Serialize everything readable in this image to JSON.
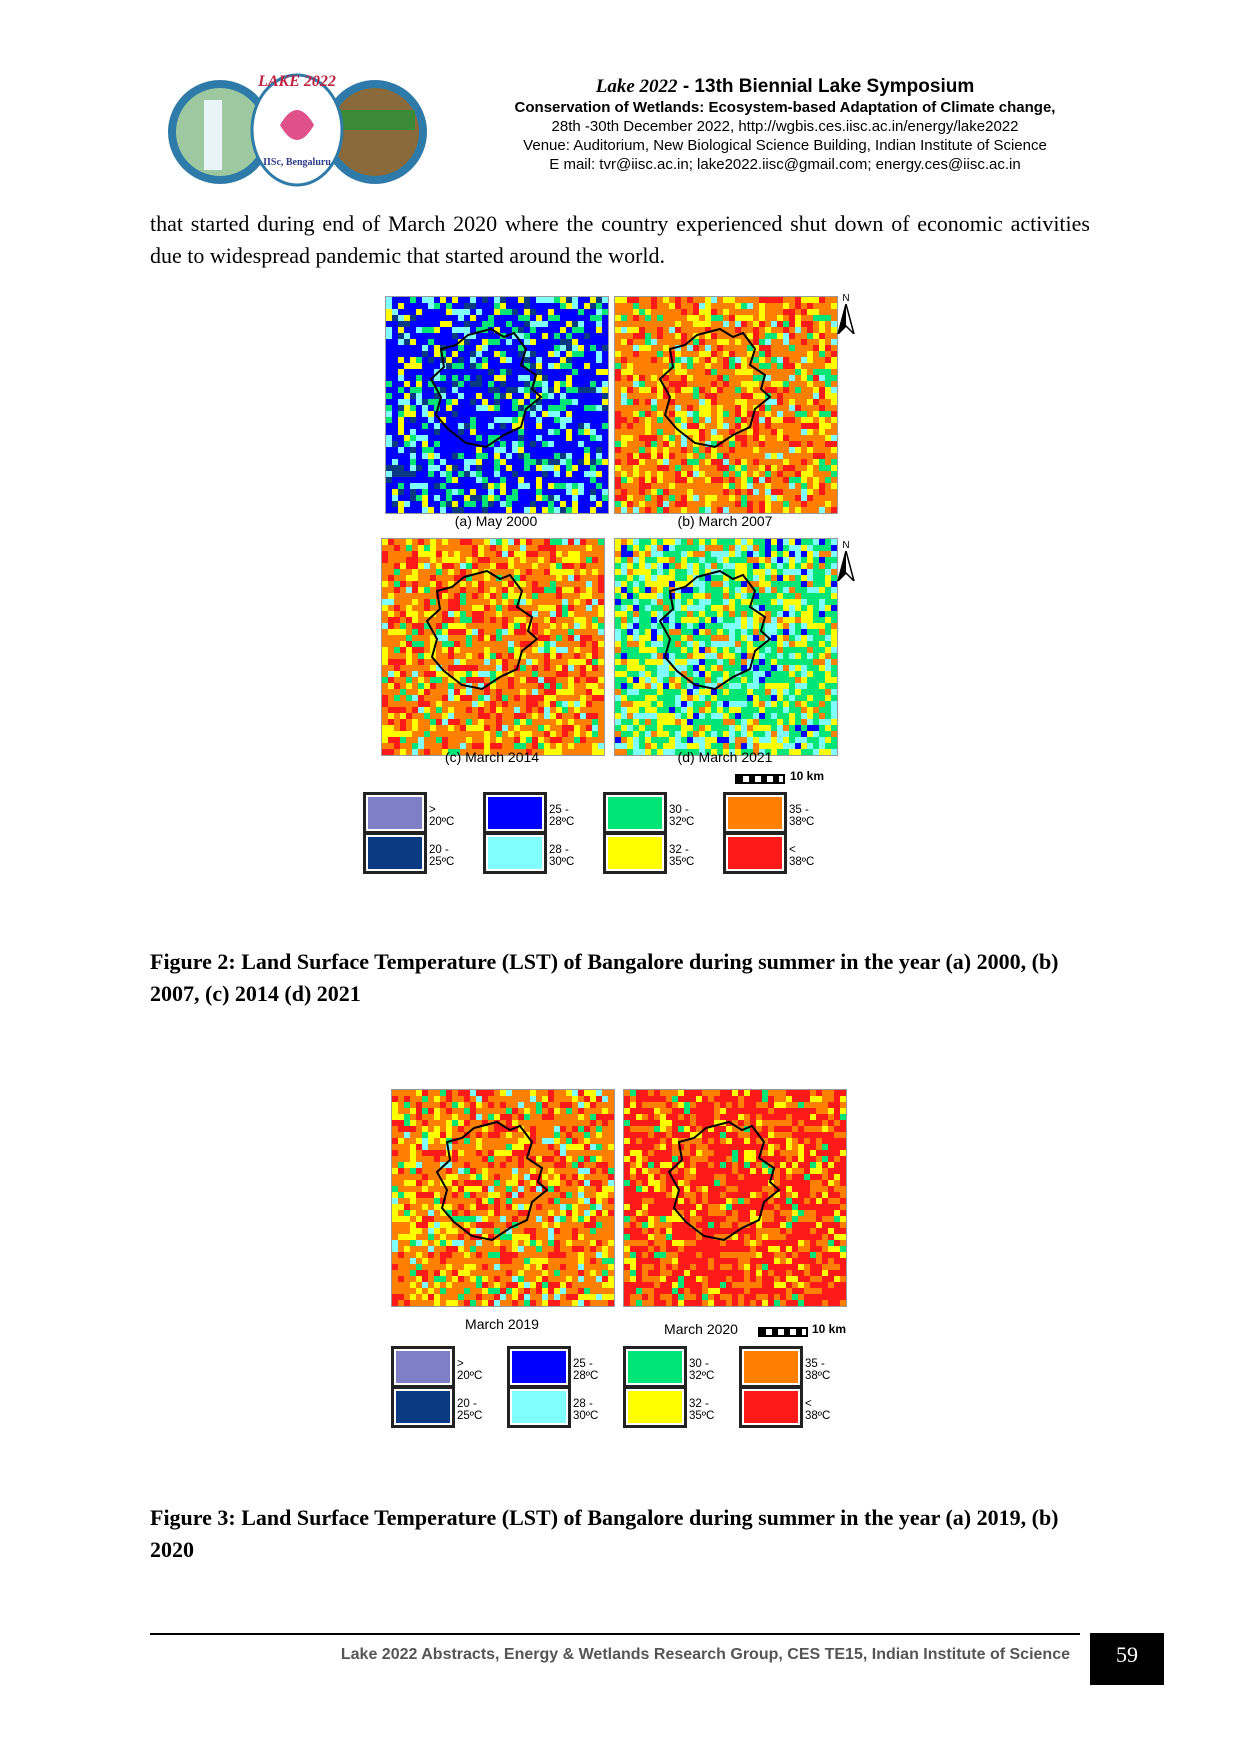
{
  "header": {
    "title_brand": "Lake 2022",
    "title_rest": " - 13th Biennial Lake Symposium",
    "subtitle": "Conservation of Wetlands: Ecosystem-based Adaptation of Climate change,",
    "dates_url": "28th -30th December 2022, http://wgbis.ces.iisc.ac.in/energy/lake2022",
    "venue": "Venue: Auditorium, New Biological Science Building, Indian Institute of Science",
    "email": "E mail: tvr@iisc.ac.in; lake2022.iisc@gmail.com; energy.ces@iisc.ac.in",
    "logo_text": "LAKE 2022",
    "logo_org": "IISc, Bengaluru"
  },
  "body_text": "that started during end of March 2020 where the country experienced shut down of economic activities due to widespread pandemic that started around the world.",
  "figure2": {
    "maps": [
      {
        "caption": "(a) May 2000",
        "palette": "blue"
      },
      {
        "caption": "(b) March 2007",
        "palette": "orange"
      },
      {
        "caption": "(c) March 2014",
        "palette": "orange"
      },
      {
        "caption": "(d) March 2021",
        "palette": "green"
      }
    ],
    "north_label": "N",
    "scale_label": "10 km",
    "caption": "Figure 2: Land Surface Temperature (LST) of Bangalore during summer in the year (a) 2000, (b) 2007, (c) 2014 (d) 2021"
  },
  "figure3": {
    "maps": [
      {
        "caption": "March 2019",
        "palette": "orange"
      },
      {
        "caption": "March 2020",
        "palette": "red"
      }
    ],
    "scale_label": "10 km",
    "caption": "Figure 3: Land Surface Temperature (LST) of Bangalore during summer in the year (a) 2019, (b) 2020"
  },
  "legend": [
    {
      "label": "> 20ºC",
      "color": "#7f7fc6"
    },
    {
      "label": "20 - 25ºC",
      "color": "#0a3a82"
    },
    {
      "label": "25 - 28ºC",
      "color": "#0000ff"
    },
    {
      "label": "28 - 30ºC",
      "color": "#80ffff"
    },
    {
      "label": "30 - 32ºC",
      "color": "#00e676"
    },
    {
      "label": "32 - 35ºC",
      "color": "#ffff00"
    },
    {
      "label": "35 - 38ºC",
      "color": "#ff8000"
    },
    {
      "label": "< 38ºC",
      "color": "#ff1a1a"
    }
  ],
  "footer": {
    "text": "Lake 2022 Abstracts, Energy & Wetlands Research Group, CES TE15, Indian Institute of Science",
    "page_number": "59"
  }
}
